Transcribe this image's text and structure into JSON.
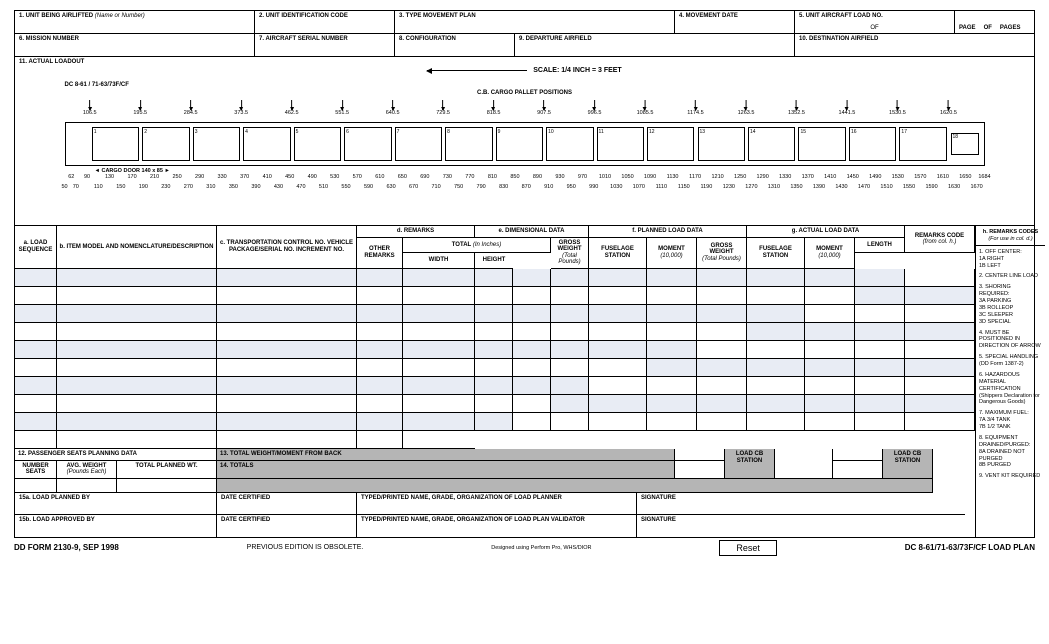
{
  "header": {
    "f1": "1. UNIT BEING AIRLIFTED",
    "f1_sub": "(Name or Number)",
    "f2": "2. UNIT IDENTIFICATION CODE",
    "f3": "3. TYPE MOVEMENT PLAN",
    "f4": "4. MOVEMENT DATE",
    "f5": "5. UNIT AIRCRAFT LOAD NO.",
    "f5_of": "OF",
    "page": "PAGE",
    "of": "OF",
    "pages": "PAGES",
    "f6": "6. MISSION NUMBER",
    "f7": "7. AIRCRAFT SERIAL NUMBER",
    "f8": "8. CONFIGURATION",
    "f9": "9. DEPARTURE AIRFIELD",
    "f10": "10. DESTINATION AIRFIELD",
    "f11": "11. ACTUAL LOADOUT"
  },
  "scale": "SCALE: 1/4 INCH = 3 FEET",
  "diagram": {
    "label": "DC 8-61 / 71-63/73F/CF",
    "center": "C.B. CARGO PALLET POSITIONS",
    "cargo_door": "CARGO DOOR 140 x 85",
    "top_ticks": [
      "106.5",
      "195.5",
      "284.5",
      "373.5",
      "462.5",
      "551.5",
      "640.5",
      "729.5",
      "818.5",
      "907.5",
      "996.5",
      "1085.5",
      "1174.5",
      "1263.5",
      "1352.5",
      "1441.5",
      "1530.5",
      "1620.5"
    ],
    "ruler1": [
      "62",
      "90",
      "130",
      "170",
      "210",
      "250",
      "290",
      "330",
      "370",
      "410",
      "450",
      "490",
      "530",
      "570",
      "610",
      "650",
      "690",
      "730",
      "770",
      "810",
      "850",
      "890",
      "930",
      "970",
      "1010",
      "1050",
      "1090",
      "1130",
      "1170",
      "1210",
      "1250",
      "1290",
      "1330",
      "1370",
      "1410",
      "1450",
      "1490",
      "1530",
      "1570",
      "1610",
      "1650",
      "1684"
    ],
    "ruler2": [
      "50",
      "70",
      "110",
      "150",
      "190",
      "230",
      "270",
      "310",
      "350",
      "390",
      "430",
      "470",
      "510",
      "550",
      "590",
      "630",
      "670",
      "710",
      "750",
      "790",
      "830",
      "870",
      "910",
      "950",
      "990",
      "1030",
      "1070",
      "1110",
      "1150",
      "1190",
      "1230",
      "1270",
      "1310",
      "1350",
      "1390",
      "1430",
      "1470",
      "1510",
      "1550",
      "1590",
      "1630",
      "1670"
    ]
  },
  "table": {
    "a": "a. LOAD SEQUENCE",
    "b": "b. ITEM MODEL AND NOMENCLATURE/DESCRIPTION",
    "c": "c. TRANSPORTATION CONTROL NO. VEHICLE PACKAGE/SERIAL NO. INCREMENT NO.",
    "d": "d. REMARKS",
    "d1": "REMARKS CODE",
    "d1_sub": "(from col. h.)",
    "d2": "OTHER REMARKS",
    "e": "e. DIMENSIONAL DATA",
    "e_total": "TOTAL (In Inches)",
    "e1": "LENGTH",
    "e2": "WIDTH",
    "e3": "HEIGHT",
    "f": "f. PLANNED LOAD DATA",
    "f1": "GROSS WEIGHT",
    "f1_sub": "(Total Pounds)",
    "f2": "FUSELAGE STATION",
    "f3": "MOMENT",
    "f3_sub": "(10,000)",
    "g": "g. ACTUAL LOAD DATA",
    "g1": "GROSS WEIGHT",
    "g1_sub": "(Total Pounds)",
    "g2": "FUSELAGE STATION",
    "g3": "MOMENT",
    "g3_sub": "(10,000)",
    "h": "h. REMARKS CODES",
    "h_sub": "(For use in col. d.)"
  },
  "remarks": [
    "1. OFF CENTER:\n   1A RIGHT\n   1B LEFT",
    "2. CENTER LINE LOAD",
    "3. SHORING REQUIRED:\n   3A PARKING\n   3B ROLLEOP\n   3C SLEEPER\n   3D SPECIAL",
    "4. MUST BE POSITIONED IN DIRECTION OF ARROW",
    "5. SPECIAL HANDLING\n(DD Form 1387-2)",
    "6. HAZARDOUS MATERIAL CERTIFICATION\n(Shippers Declaration for Dangerous Goods)",
    "7. MAXIMUM FUEL:\n   7A 3/4 TANK\n   7B 1/2 TANK",
    "8. EQUIPMENT DRAINED/PURGED:\n   8A DRAINED NOT PURGED\n   8B PURGED",
    "9. VENT KIT REQUIRED"
  ],
  "bottom": {
    "f12": "12. PASSENGER SEATS PLANNING DATA",
    "f12a": "NUMBER SEATS",
    "f12b": "AVG. WEIGHT",
    "f12b_sub": "(Pounds Each)",
    "f12c": "TOTAL PLANNED WT.",
    "f13": "13. TOTAL WEIGHT/MOMENT FROM BACK",
    "f14": "14. TOTALS",
    "loadcb": "LOAD CB STATION",
    "f15a": "15a. LOAD PLANNED BY",
    "f15b": "15b. LOAD APPROVED BY",
    "datecert": "DATE CERTIFIED",
    "typed_a": "TYPED/PRINTED NAME, GRADE, ORGANIZATION OF LOAD PLANNER",
    "typed_b": "TYPED/PRINTED NAME, GRADE, ORGANIZATION OF LOAD PLAN VALIDATOR",
    "sig": "SIGNATURE"
  },
  "footer": {
    "form": "DD FORM 2130-9, SEP 1998",
    "prev": "PREVIOUS EDITION IS OBSOLETE.",
    "design": "Designed using Perform Pro, WHS/DIOR",
    "reset": "Reset",
    "title": "DC 8-61/71-63/73F/CF LOAD PLAN"
  },
  "style": {
    "alt_row_bg": "#e8ecf4",
    "gray_bg": "#b5b5b5"
  }
}
